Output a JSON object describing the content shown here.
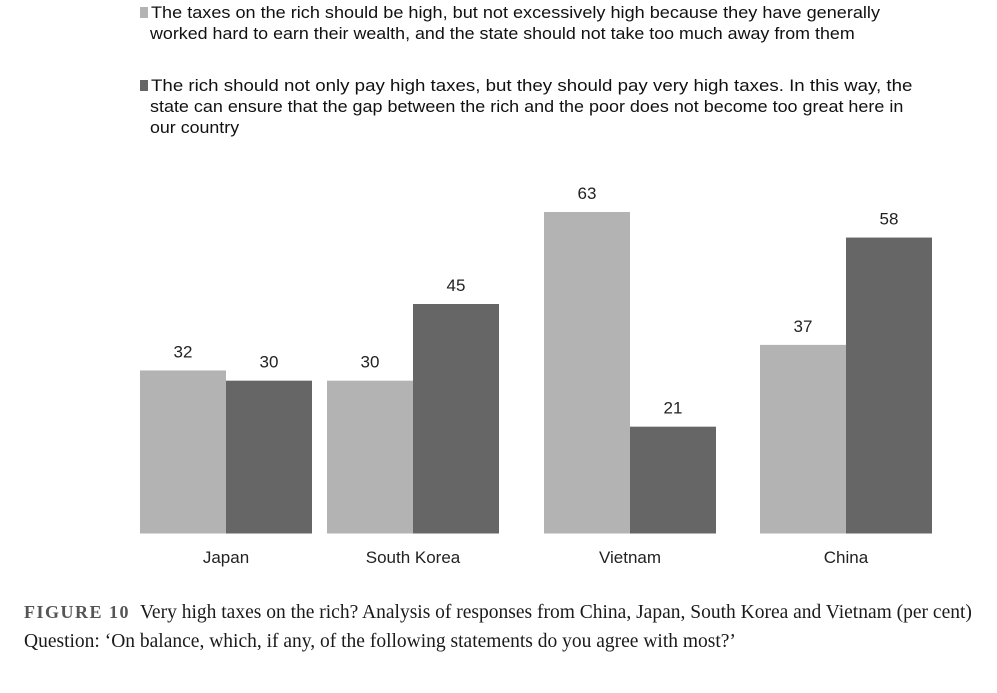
{
  "chart_data": {
    "type": "bar",
    "categories": [
      "Japan",
      "South Korea",
      "Vietnam",
      "China"
    ],
    "series": [
      {
        "name_lines": [
          "The taxes on the rich should be high, but not excessively high because they have generally",
          "worked hard to earn their wealth, and the state should not take too much away from them"
        ],
        "color": "#b3b3b3",
        "values": [
          32,
          30,
          63,
          37
        ]
      },
      {
        "name_lines": [
          "The rich should not only pay high taxes, but they should pay very high taxes. In this way, the",
          "state can ensure that the gap between the rich and the poor does not become too great here in",
          "our country"
        ],
        "color": "#666666",
        "values": [
          30,
          45,
          21,
          58
        ]
      }
    ],
    "ylim": [
      0,
      63
    ],
    "grid": false,
    "legend_position": "top-left",
    "data_labels": true
  },
  "caption": {
    "figure_label": "FIGURE 10",
    "title": "Very high taxes on the rich? Analysis of responses from China, Japan, South Korea and Vietnam (per cent)",
    "question": "Question: ‘On balance, which, if any, of the following statements do you agree with most?’"
  }
}
